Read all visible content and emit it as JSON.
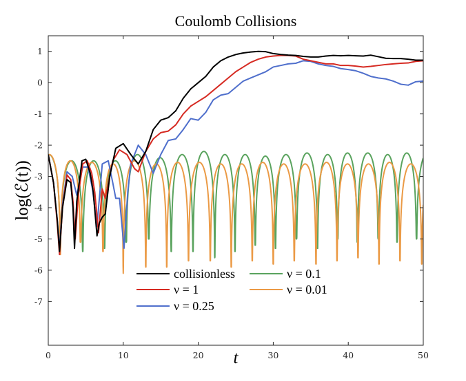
{
  "chart_data": {
    "type": "line",
    "title": "Coulomb Collisions",
    "xlabel": "t",
    "ylabel": "log(ℰ(t))",
    "xlim": [
      0,
      50
    ],
    "ylim": [
      -8.4,
      1.5
    ],
    "xticks": [
      0,
      10,
      20,
      30,
      40,
      50
    ],
    "xtick_labels": [
      "0",
      "10",
      "20",
      "30",
      "40",
      "50"
    ],
    "yticks": [
      1,
      0,
      -1,
      -2,
      -3,
      -4,
      -5,
      -6,
      -7
    ],
    "ytick_labels": [
      "1",
      "0",
      "-1",
      "-2",
      "-3",
      "-4",
      "-5",
      "-6",
      "-7"
    ],
    "grid": false,
    "legend_placement": "bottom-left",
    "series": [
      {
        "name": "collisionless",
        "color": "#000000",
        "kind": "points",
        "points": [
          [
            0,
            -2.3
          ],
          [
            0.7,
            -3.2
          ],
          [
            1.2,
            -4.4
          ],
          [
            1.5,
            -5.4
          ],
          [
            1.9,
            -4.0
          ],
          [
            2.5,
            -3.1
          ],
          [
            3.0,
            -3.2
          ],
          [
            3.3,
            -4.0
          ],
          [
            3.5,
            -5.3
          ],
          [
            3.8,
            -3.8
          ],
          [
            4.5,
            -2.5
          ],
          [
            5.0,
            -2.45
          ],
          [
            5.6,
            -2.9
          ],
          [
            6.0,
            -3.5
          ],
          [
            6.5,
            -4.9
          ],
          [
            6.8,
            -4.5
          ],
          [
            7.2,
            -4.3
          ],
          [
            7.6,
            -4.2
          ],
          [
            8.2,
            -3.0
          ],
          [
            9.0,
            -2.1
          ],
          [
            10,
            -1.95
          ],
          [
            11,
            -2.3
          ],
          [
            12,
            -2.6
          ],
          [
            13,
            -2.2
          ],
          [
            14,
            -1.5
          ],
          [
            15,
            -1.2
          ],
          [
            16,
            -1.12
          ],
          [
            17,
            -0.9
          ],
          [
            18,
            -0.5
          ],
          [
            19,
            -0.2
          ],
          [
            20,
            0.0
          ],
          [
            21,
            0.2
          ],
          [
            22,
            0.5
          ],
          [
            23,
            0.7
          ],
          [
            24,
            0.82
          ],
          [
            25,
            0.9
          ],
          [
            26,
            0.95
          ],
          [
            27,
            0.98
          ],
          [
            28,
            1.0
          ],
          [
            29,
            0.99
          ],
          [
            30,
            0.93
          ],
          [
            31,
            0.9
          ],
          [
            32,
            0.88
          ],
          [
            33,
            0.87
          ],
          [
            34,
            0.84
          ],
          [
            35,
            0.82
          ],
          [
            36,
            0.82
          ],
          [
            37,
            0.85
          ],
          [
            38,
            0.87
          ],
          [
            39,
            0.86
          ],
          [
            40,
            0.87
          ],
          [
            41,
            0.86
          ],
          [
            42,
            0.85
          ],
          [
            43,
            0.88
          ],
          [
            44,
            0.83
          ],
          [
            45,
            0.78
          ],
          [
            46,
            0.77
          ],
          [
            47,
            0.77
          ],
          [
            48,
            0.75
          ],
          [
            49,
            0.72
          ],
          [
            50,
            0.72
          ]
        ]
      },
      {
        "name": "ν = 1",
        "color": "#d62a22",
        "kind": "points",
        "points": [
          [
            0,
            -2.3
          ],
          [
            0.7,
            -3.2
          ],
          [
            1.2,
            -4.5
          ],
          [
            1.5,
            -5.5
          ],
          [
            1.9,
            -4.0
          ],
          [
            2.5,
            -2.95
          ],
          [
            3.0,
            -3.1
          ],
          [
            3.3,
            -3.8
          ],
          [
            3.6,
            -5.0
          ],
          [
            4.0,
            -3.6
          ],
          [
            4.6,
            -2.6
          ],
          [
            5.2,
            -2.5
          ],
          [
            5.8,
            -2.9
          ],
          [
            6.2,
            -3.5
          ],
          [
            6.7,
            -4.8
          ],
          [
            7.2,
            -3.4
          ],
          [
            7.6,
            -3.7
          ],
          [
            8.6,
            -2.5
          ],
          [
            9.5,
            -2.15
          ],
          [
            10.5,
            -2.3
          ],
          [
            11.5,
            -2.75
          ],
          [
            12,
            -2.85
          ],
          [
            13,
            -2.2
          ],
          [
            14,
            -1.8
          ],
          [
            15,
            -1.6
          ],
          [
            16,
            -1.55
          ],
          [
            17,
            -1.35
          ],
          [
            18,
            -1.0
          ],
          [
            19,
            -0.75
          ],
          [
            20,
            -0.6
          ],
          [
            21,
            -0.45
          ],
          [
            22,
            -0.25
          ],
          [
            23,
            -0.05
          ],
          [
            24,
            0.15
          ],
          [
            25,
            0.35
          ],
          [
            26,
            0.5
          ],
          [
            27,
            0.65
          ],
          [
            28,
            0.75
          ],
          [
            29,
            0.82
          ],
          [
            30,
            0.85
          ],
          [
            31,
            0.87
          ],
          [
            32,
            0.87
          ],
          [
            33,
            0.85
          ],
          [
            34,
            0.75
          ],
          [
            35,
            0.7
          ],
          [
            36,
            0.65
          ],
          [
            37,
            0.6
          ],
          [
            38,
            0.6
          ],
          [
            39,
            0.55
          ],
          [
            40,
            0.55
          ],
          [
            41,
            0.53
          ],
          [
            42,
            0.5
          ],
          [
            43,
            0.52
          ],
          [
            44,
            0.55
          ],
          [
            45,
            0.58
          ],
          [
            46,
            0.6
          ],
          [
            47,
            0.62
          ],
          [
            48,
            0.63
          ],
          [
            49,
            0.68
          ],
          [
            50,
            0.7
          ]
        ]
      },
      {
        "name": "ν = 0.25",
        "color": "#4f6fcc",
        "kind": "points",
        "points": [
          [
            0,
            -2.3
          ],
          [
            0.7,
            -3.2
          ],
          [
            1.2,
            -4.4
          ],
          [
            1.5,
            -5.3
          ],
          [
            1.9,
            -3.9
          ],
          [
            2.5,
            -2.85
          ],
          [
            3.2,
            -3.0
          ],
          [
            3.8,
            -3.6
          ],
          [
            4.6,
            -2.7
          ],
          [
            5.3,
            -2.7
          ],
          [
            5.9,
            -3.4
          ],
          [
            6.5,
            -4.6
          ],
          [
            7.2,
            -2.6
          ],
          [
            8,
            -2.5
          ],
          [
            8.6,
            -3.2
          ],
          [
            9,
            -3.7
          ],
          [
            9.5,
            -3.7
          ],
          [
            10.1,
            -5.3
          ],
          [
            10.6,
            -3.5
          ],
          [
            11,
            -2.6
          ],
          [
            12,
            -2.0
          ],
          [
            13,
            -2.3
          ],
          [
            14,
            -2.9
          ],
          [
            15,
            -2.3
          ],
          [
            16,
            -1.85
          ],
          [
            17,
            -1.8
          ],
          [
            18,
            -1.5
          ],
          [
            19,
            -1.15
          ],
          [
            20,
            -1.2
          ],
          [
            21,
            -0.95
          ],
          [
            22,
            -0.55
          ],
          [
            23,
            -0.4
          ],
          [
            24,
            -0.35
          ],
          [
            25,
            -0.15
          ],
          [
            26,
            0.05
          ],
          [
            27,
            0.15
          ],
          [
            28,
            0.25
          ],
          [
            29,
            0.35
          ],
          [
            30,
            0.5
          ],
          [
            31,
            0.55
          ],
          [
            32,
            0.6
          ],
          [
            33,
            0.62
          ],
          [
            34,
            0.7
          ],
          [
            35,
            0.68
          ],
          [
            36,
            0.6
          ],
          [
            37,
            0.55
          ],
          [
            38,
            0.52
          ],
          [
            39,
            0.45
          ],
          [
            40,
            0.42
          ],
          [
            41,
            0.38
          ],
          [
            42,
            0.3
          ],
          [
            43,
            0.2
          ],
          [
            44,
            0.15
          ],
          [
            45,
            0.12
          ],
          [
            46,
            0.05
          ],
          [
            47,
            -0.05
          ],
          [
            48,
            -0.08
          ],
          [
            49,
            0.03
          ],
          [
            50,
            0.05
          ]
        ]
      },
      {
        "name": "ν = 0.1",
        "color": "#5aa35e",
        "kind": "oscillation",
        "dips_t": [
          -1.4,
          1.6,
          4.6,
          7.5,
          10.4,
          13.4,
          16.4,
          19.3,
          22.2,
          24.9,
          27.6,
          30.3,
          33.1,
          35.9,
          38.6,
          41.2,
          44.0,
          46.5,
          49.1,
          52.0
        ],
        "dips_y": [
          -5.3,
          -5.3,
          -5.4,
          -5.3,
          -5.1,
          -5.0,
          -5.4,
          -5.4,
          -5.6,
          -5.4,
          -5.2,
          -5.3,
          -5.0,
          -5.3,
          -5.0,
          -5.1,
          -5.0,
          -5.1,
          -5.0,
          -5.0
        ],
        "peaks_y": [
          -2.3,
          -2.5,
          -2.5,
          -2.5,
          -2.3,
          -2.4,
          -2.3,
          -2.2,
          -2.3,
          -2.3,
          -2.35,
          -2.3,
          -2.25,
          -2.3,
          -2.25,
          -2.25,
          -2.3,
          -2.25,
          -2.25
        ]
      },
      {
        "name": "ν = 0.01",
        "color": "#eb9a45",
        "kind": "oscillation",
        "dips_t": [
          -1.3,
          1.6,
          4.3,
          7.3,
          10.0,
          13.0,
          15.8,
          18.7,
          21.6,
          24.4,
          27.2,
          30.0,
          32.8,
          35.7,
          38.5,
          41.3,
          44.1,
          46.9,
          49.8,
          52.6
        ],
        "dips_y": [
          -5.5,
          -5.5,
          -5.1,
          -5.4,
          -6.1,
          -5.9,
          -5.9,
          -5.7,
          -5.7,
          -5.9,
          -5.7,
          -5.8,
          -5.7,
          -5.8,
          -5.7,
          -5.6,
          -5.8,
          -5.7,
          -5.8,
          -5.8
        ],
        "peaks_y": [
          -2.3,
          -2.5,
          -2.55,
          -2.6,
          -2.5,
          -2.6,
          -2.55,
          -2.55,
          -2.6,
          -2.6,
          -2.55,
          -2.6,
          -2.6,
          -2.55,
          -2.6,
          -2.6,
          -2.55,
          -2.6,
          -2.6
        ]
      }
    ]
  }
}
